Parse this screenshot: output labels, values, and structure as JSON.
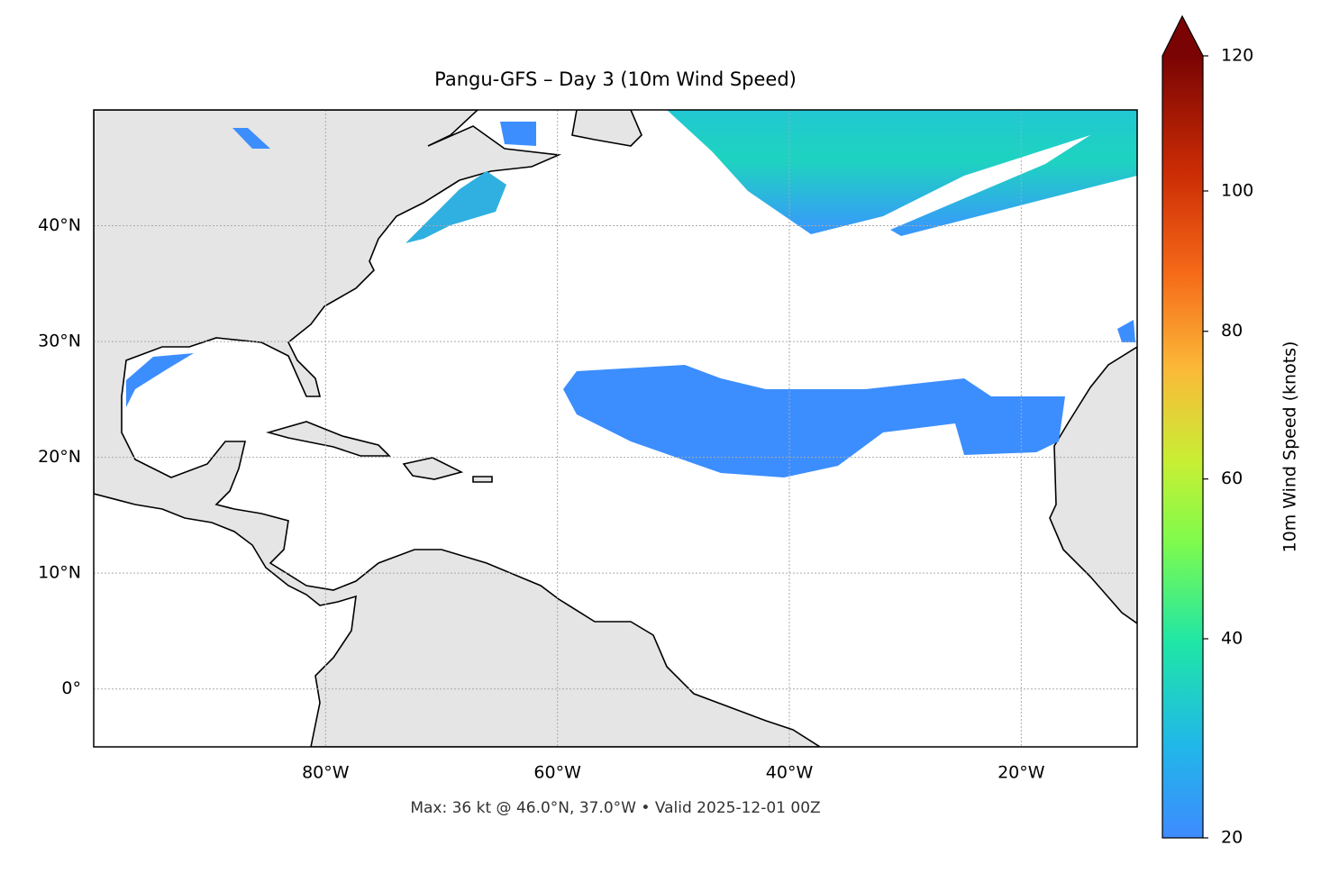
{
  "title": "Pangu-GFS – Day 3 (10m Wind Speed)",
  "map": {
    "xlim": [
      -100,
      -10
    ],
    "ylim": [
      -5,
      50
    ],
    "xticks": [
      {
        "value": -80,
        "label": "80°W"
      },
      {
        "value": -60,
        "label": "60°W"
      },
      {
        "value": -40,
        "label": "40°W"
      },
      {
        "value": -20,
        "label": "20°W"
      }
    ],
    "yticks": [
      {
        "value": 0,
        "label": "0°"
      },
      {
        "value": 10,
        "label": "10°N"
      },
      {
        "value": 20,
        "label": "20°N"
      },
      {
        "value": 30,
        "label": "30°N"
      },
      {
        "value": 40,
        "label": "40°N"
      }
    ],
    "grid": true
  },
  "colorbar": {
    "label": "10m Wind Speed (knots)",
    "lim": [
      20,
      120
    ],
    "ticks": [
      20,
      40,
      60,
      80,
      100,
      120
    ]
  },
  "footer": "Max: 36 kt @ 46.0°N, 37.0°W • Valid 2025-12-01 00Z"
}
